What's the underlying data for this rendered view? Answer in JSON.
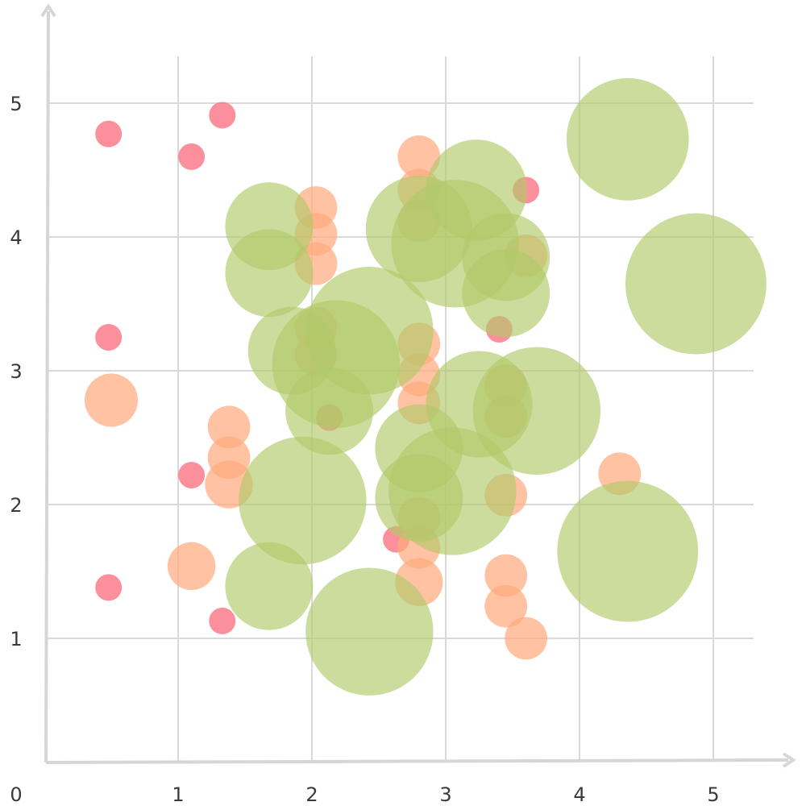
{
  "chart_data": {
    "type": "bubble",
    "xlim": [
      0,
      5.5
    ],
    "ylim": [
      0,
      5.5
    ],
    "x_ticks": [
      0,
      1,
      2,
      3,
      4,
      5
    ],
    "y_ticks": [
      1,
      2,
      3,
      4,
      5
    ],
    "x_tick_labels": [
      "0",
      "1",
      "2",
      "3",
      "4",
      "5"
    ],
    "y_tick_labels": [
      "1",
      "2",
      "3",
      "4",
      "5"
    ],
    "grid": true,
    "legend": "none",
    "colors": {
      "small": "#f96b7b",
      "medium": "#ffab7e",
      "large": "#b1c968",
      "grid": "#d9d9d9",
      "axis": "#d6d6d6"
    },
    "series": [
      {
        "color": "#f96b7b",
        "opacity": 0.75,
        "points": [
          {
            "x": 0.48,
            "y": 4.77,
            "size": 1
          },
          {
            "x": 1.33,
            "y": 4.91,
            "size": 1
          },
          {
            "x": 1.1,
            "y": 4.6,
            "size": 1
          },
          {
            "x": 0.48,
            "y": 3.25,
            "size": 1
          },
          {
            "x": 1.1,
            "y": 2.22,
            "size": 1
          },
          {
            "x": 0.48,
            "y": 1.38,
            "size": 1
          },
          {
            "x": 1.33,
            "y": 1.13,
            "size": 1
          },
          {
            "x": 3.6,
            "y": 4.35,
            "size": 1
          },
          {
            "x": 3.4,
            "y": 3.31,
            "size": 1
          },
          {
            "x": 2.13,
            "y": 2.65,
            "size": 1
          },
          {
            "x": 2.63,
            "y": 1.74,
            "size": 1
          }
        ]
      },
      {
        "color": "#ffab7e",
        "opacity": 0.72,
        "points": [
          {
            "x": 0.5,
            "y": 2.78,
            "size": 2
          },
          {
            "x": 1.38,
            "y": 2.58,
            "size": 1.6
          },
          {
            "x": 1.38,
            "y": 2.35,
            "size": 1.6
          },
          {
            "x": 1.38,
            "y": 2.15,
            "size": 1.8
          },
          {
            "x": 1.1,
            "y": 1.54,
            "size": 1.8
          },
          {
            "x": 2.03,
            "y": 4.22,
            "size": 1.6
          },
          {
            "x": 2.03,
            "y": 4.02,
            "size": 1.6
          },
          {
            "x": 2.03,
            "y": 3.8,
            "size": 1.6
          },
          {
            "x": 2.03,
            "y": 3.32,
            "size": 1.6
          },
          {
            "x": 2.03,
            "y": 3.12,
            "size": 1.6
          },
          {
            "x": 2.8,
            "y": 4.6,
            "size": 1.6
          },
          {
            "x": 2.8,
            "y": 4.35,
            "size": 1.6
          },
          {
            "x": 2.8,
            "y": 4.12,
            "size": 1.6
          },
          {
            "x": 2.8,
            "y": 3.2,
            "size": 1.6
          },
          {
            "x": 2.8,
            "y": 2.97,
            "size": 1.6
          },
          {
            "x": 2.8,
            "y": 2.76,
            "size": 1.6
          },
          {
            "x": 2.8,
            "y": 1.9,
            "size": 1.6
          },
          {
            "x": 2.8,
            "y": 1.68,
            "size": 1.6
          },
          {
            "x": 2.8,
            "y": 1.42,
            "size": 1.8
          },
          {
            "x": 3.45,
            "y": 2.89,
            "size": 1.6
          },
          {
            "x": 3.45,
            "y": 2.66,
            "size": 1.6
          },
          {
            "x": 3.45,
            "y": 2.07,
            "size": 1.6
          },
          {
            "x": 3.45,
            "y": 1.47,
            "size": 1.6
          },
          {
            "x": 3.45,
            "y": 1.24,
            "size": 1.6
          },
          {
            "x": 3.6,
            "y": 1.0,
            "size": 1.6
          },
          {
            "x": 3.6,
            "y": 3.86,
            "size": 1.6
          },
          {
            "x": 4.3,
            "y": 2.23,
            "size": 1.6
          }
        ]
      },
      {
        "color": "#b1c968",
        "opacity": 0.65,
        "points": [
          {
            "x": 1.68,
            "y": 4.08,
            "size": 3.3
          },
          {
            "x": 1.68,
            "y": 3.73,
            "size": 3.3
          },
          {
            "x": 1.85,
            "y": 3.15,
            "size": 3.3
          },
          {
            "x": 2.13,
            "y": 2.7,
            "size": 3.3
          },
          {
            "x": 1.68,
            "y": 1.39,
            "size": 3.3
          },
          {
            "x": 2.43,
            "y": 3.3,
            "size": 4.8
          },
          {
            "x": 2.18,
            "y": 3.05,
            "size": 4.8
          },
          {
            "x": 1.93,
            "y": 2.03,
            "size": 4.8
          },
          {
            "x": 2.43,
            "y": 1.05,
            "size": 4.8
          },
          {
            "x": 2.8,
            "y": 4.06,
            "size": 4.0
          },
          {
            "x": 3.23,
            "y": 4.35,
            "size": 3.8
          },
          {
            "x": 3.07,
            "y": 3.95,
            "size": 4.8
          },
          {
            "x": 3.45,
            "y": 3.85,
            "size": 3.3
          },
          {
            "x": 3.45,
            "y": 3.58,
            "size": 3.3
          },
          {
            "x": 2.8,
            "y": 2.42,
            "size": 3.3
          },
          {
            "x": 2.8,
            "y": 2.05,
            "size": 3.3
          },
          {
            "x": 3.05,
            "y": 2.1,
            "size": 4.8
          },
          {
            "x": 3.25,
            "y": 2.75,
            "size": 4.0
          },
          {
            "x": 3.68,
            "y": 2.7,
            "size": 4.8
          },
          {
            "x": 4.36,
            "y": 4.73,
            "size": 4.6
          },
          {
            "x": 4.87,
            "y": 3.65,
            "size": 5.3
          },
          {
            "x": 4.36,
            "y": 1.65,
            "size": 5.3
          }
        ]
      }
    ]
  }
}
